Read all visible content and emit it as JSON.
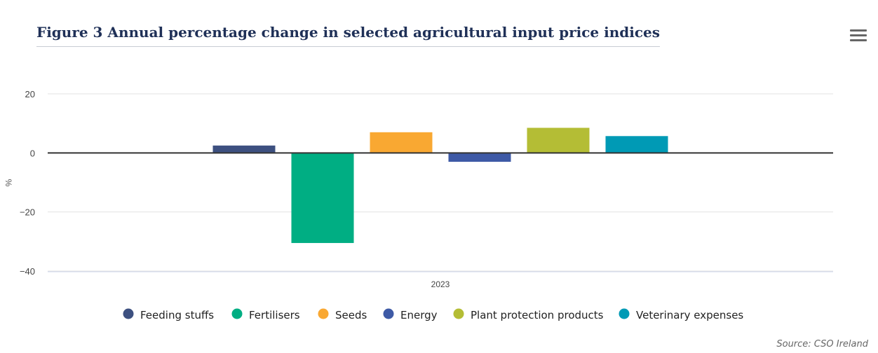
{
  "title": "Figure 3 Annual percentage change in selected agricultural input price indices",
  "source": "Source: CSO Ireland",
  "menu_icon": "hamburger-menu-icon",
  "chart_data": {
    "type": "bar",
    "categories": [
      "2023"
    ],
    "ylabel": "%",
    "ylim": [
      -40,
      20
    ],
    "yticks": [
      20,
      0,
      -20,
      -40
    ],
    "grid": true,
    "legend_position": "bottom",
    "series": [
      {
        "name": "Feeding stuffs",
        "values": [
          2.5
        ],
        "color": "#3d5080"
      },
      {
        "name": "Fertilisers",
        "values": [
          -30.5
        ],
        "color": "#00ae83"
      },
      {
        "name": "Seeds",
        "values": [
          7.0
        ],
        "color": "#f9a832"
      },
      {
        "name": "Energy",
        "values": [
          -3.0
        ],
        "color": "#3e5aa6"
      },
      {
        "name": "Plant protection products",
        "values": [
          8.5
        ],
        "color": "#b4bd35"
      },
      {
        "name": "Veterinary expenses",
        "values": [
          5.7
        ],
        "color": "#009ab5"
      }
    ]
  }
}
